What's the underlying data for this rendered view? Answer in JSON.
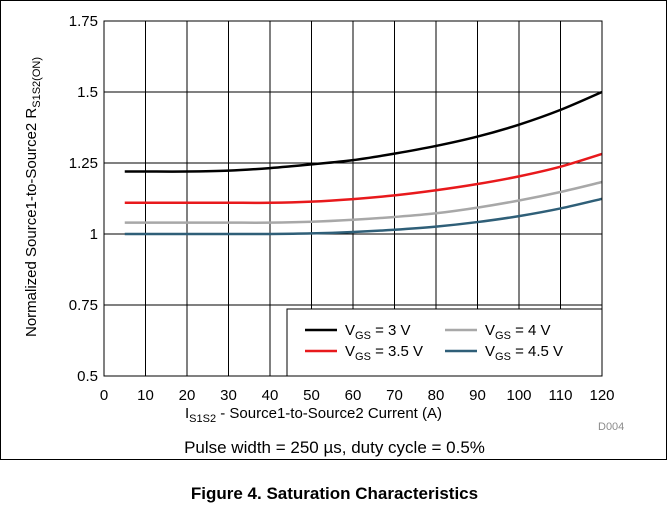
{
  "chart_data": {
    "type": "line",
    "title": "",
    "xlabel": {
      "main": "I",
      "sub": "S1S2",
      "rest": " - Source1-to-Source2 Current (A)"
    },
    "ylabel": {
      "main": "Normalized Source1-to-Source2 R",
      "sub": "S1S2(ON)"
    },
    "xlim": [
      0,
      120
    ],
    "ylim": [
      0.5,
      1.75
    ],
    "x_ticks": [
      "0",
      "10",
      "20",
      "30",
      "40",
      "50",
      "60",
      "70",
      "80",
      "90",
      "100",
      "110",
      "120"
    ],
    "x_tick_values": [
      0,
      10,
      20,
      30,
      40,
      50,
      60,
      70,
      80,
      90,
      100,
      110,
      120
    ],
    "y_ticks": [
      "0.5",
      "0.75",
      "1",
      "1.25",
      "1.5",
      "1.75"
    ],
    "y_tick_values": [
      0.5,
      0.75,
      1,
      1.25,
      1.5,
      1.75
    ],
    "grid": true,
    "legend_position": "bottom-right",
    "series": [
      {
        "name": "V_GS = 3 V",
        "label_main": "V",
        "label_sub": "GS",
        "label_rest": " = 3 V",
        "color": "#000000",
        "x": [
          5,
          10,
          20,
          30,
          40,
          50,
          60,
          70,
          80,
          90,
          100,
          110,
          120
        ],
        "y": [
          1.22,
          1.22,
          1.22,
          1.223,
          1.232,
          1.245,
          1.26,
          1.283,
          1.31,
          1.343,
          1.385,
          1.437,
          1.5
        ]
      },
      {
        "name": "V_GS = 4 V",
        "label_main": "V",
        "label_sub": "GS",
        "label_rest": " = 4 V",
        "color": "#a8a8a8",
        "x": [
          5,
          10,
          20,
          30,
          40,
          50,
          60,
          70,
          80,
          90,
          100,
          110,
          120
        ],
        "y": [
          1.04,
          1.04,
          1.04,
          1.04,
          1.04,
          1.043,
          1.05,
          1.06,
          1.073,
          1.093,
          1.118,
          1.148,
          1.183
        ]
      },
      {
        "name": "V_GS = 3.5 V",
        "label_main": "V",
        "label_sub": "GS",
        "label_rest": " = 3.5 V",
        "color": "#e8191c",
        "x": [
          5,
          10,
          20,
          30,
          40,
          50,
          60,
          70,
          80,
          90,
          100,
          110,
          120
        ],
        "y": [
          1.11,
          1.11,
          1.11,
          1.11,
          1.11,
          1.114,
          1.123,
          1.136,
          1.154,
          1.176,
          1.203,
          1.237,
          1.282
        ]
      },
      {
        "name": "V_GS = 4.5 V",
        "label_main": "V",
        "label_sub": "GS",
        "label_rest": " = 4.5 V",
        "color": "#2f5f78",
        "x": [
          5,
          10,
          20,
          30,
          40,
          50,
          60,
          70,
          80,
          90,
          100,
          110,
          120
        ],
        "y": [
          1.0,
          1.0,
          1.0,
          1.0,
          1.0,
          1.002,
          1.007,
          1.015,
          1.026,
          1.042,
          1.063,
          1.09,
          1.124
        ]
      }
    ]
  },
  "figure": {
    "code": "D004",
    "note": "Pulse width = 250 µs, duty cycle = 0.5%",
    "caption": "Figure 4. Saturation Characteristics"
  }
}
